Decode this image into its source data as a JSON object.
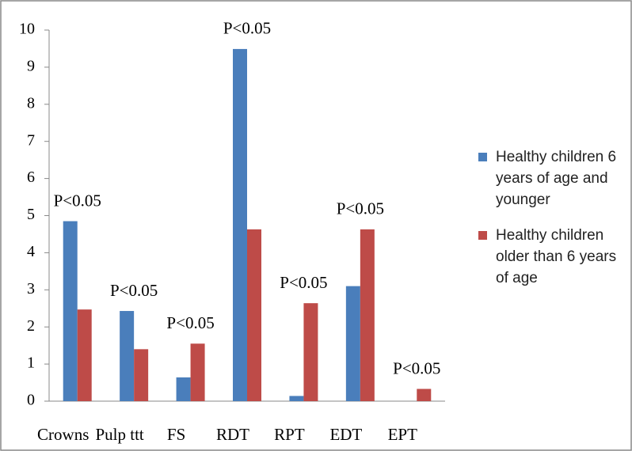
{
  "chart_data": {
    "type": "bar",
    "categories": [
      "Crowns",
      "Pulp ttt",
      "FS",
      "RDT",
      "RPT",
      "EDT",
      "EPT"
    ],
    "series": [
      {
        "name": "Healthy children 6 years of age and younger",
        "color": "#4a7ebb",
        "values": [
          4.85,
          2.43,
          0.64,
          9.49,
          0.14,
          3.1,
          0
        ]
      },
      {
        "name": "Healthy children older than 6 years of age",
        "color": "#be4b48",
        "values": [
          2.47,
          1.4,
          1.55,
          4.63,
          2.64,
          4.63,
          0.33
        ]
      }
    ],
    "annotations": [
      "P<0.05",
      "P<0.05",
      "P<0.05",
      "P<0.05",
      "P<0.05",
      "P<0.05",
      "P<0.05"
    ],
    "ylim": [
      0,
      10
    ],
    "yticks": [
      0,
      1,
      2,
      3,
      4,
      5,
      6,
      7,
      8,
      9,
      10
    ],
    "legend": "right",
    "grid": false
  }
}
